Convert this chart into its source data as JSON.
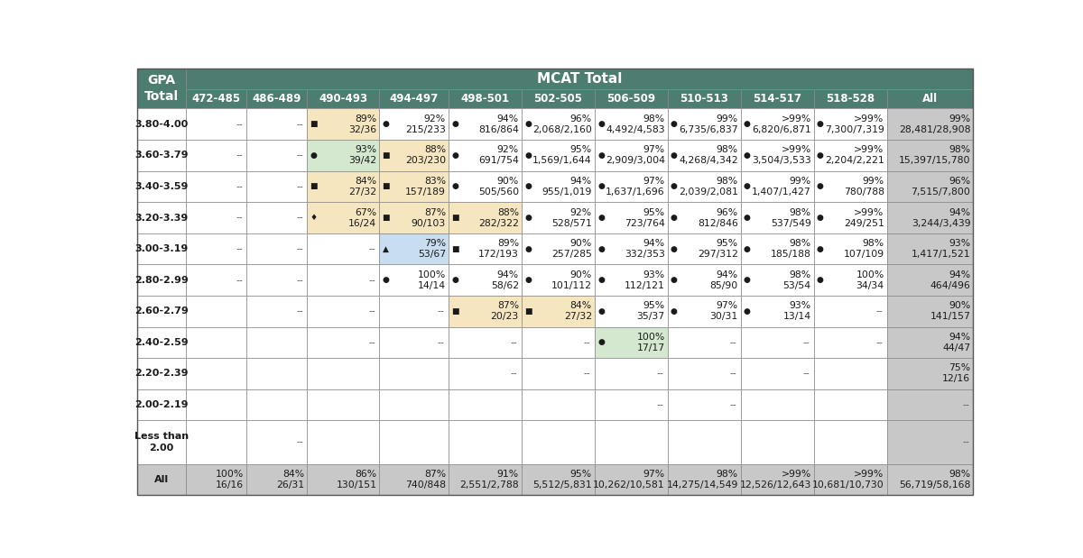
{
  "col_header2": "MCAT Total",
  "mcat_cols": [
    "472-485",
    "486-489",
    "490-493",
    "494-497",
    "498-501",
    "502-505",
    "506-509",
    "510-513",
    "514-517",
    "518-528",
    "All"
  ],
  "gpa_rows": [
    "3.80-4.00",
    "3.60-3.79",
    "3.40-3.59",
    "3.20-3.39",
    "3.00-3.19",
    "2.80-2.99",
    "2.60-2.79",
    "2.40-2.59",
    "2.20-2.39",
    "2.00-2.19",
    "Less than\n2.00",
    "All"
  ],
  "cells": [
    [
      "--",
      "--",
      "■ 89%\n32/36",
      "● 92%\n215/233",
      "● 94%\n816/864",
      "● 96%\n2,068/2,160",
      "● 98%\n4,492/4,583",
      "● 99%\n6,735/6,837",
      "● >99%\n6,820/6,871",
      "● >99%\n7,300/7,319",
      "99%\n28,481/28,908"
    ],
    [
      "--",
      "--",
      "● 93%\n39/42",
      "■ 88%\n203/230",
      "● 92%\n691/754",
      "● 95%\n1,569/1,644",
      "● 97%\n2,909/3,004",
      "● 98%\n4,268/4,342",
      "● >99%\n3,504/3,533",
      "● >99%\n2,204/2,221",
      "98%\n15,397/15,780"
    ],
    [
      "--",
      "--",
      "■ 84%\n27/32",
      "■ 83%\n157/189",
      "● 90%\n505/560",
      "● 94%\n955/1,019",
      "● 97%\n1,637/1,696",
      "● 98%\n2,039/2,081",
      "● 99%\n1,407/1,427",
      "● 99%\n780/788",
      "96%\n7,515/7,800"
    ],
    [
      "--",
      "--",
      "♦ 67%\n16/24",
      "■ 87%\n90/103",
      "■ 88%\n282/322",
      "● 92%\n528/571",
      "● 95%\n723/764",
      "● 96%\n812/846",
      "● 98%\n537/549",
      "● >99%\n249/251",
      "94%\n3,244/3,439"
    ],
    [
      "--",
      "--",
      "--",
      "▲ 79%\n53/67",
      "■ 89%\n172/193",
      "● 90%\n257/285",
      "● 94%\n332/353",
      "● 95%\n297/312",
      "● 98%\n185/188",
      "● 98%\n107/109",
      "93%\n1,417/1,521"
    ],
    [
      "--",
      "--",
      "--",
      "● 100%\n14/14",
      "● 94%\n58/62",
      "● 90%\n101/112",
      "● 93%\n112/121",
      "● 94%\n85/90",
      "● 98%\n53/54",
      "● 100%\n34/34",
      "94%\n464/496"
    ],
    [
      "",
      "--",
      "--",
      "--",
      "■ 87%\n20/23",
      "■ 84%\n27/32",
      "● 95%\n35/37",
      "● 97%\n30/31",
      "● 93%\n13/14",
      "--",
      "90%\n141/157"
    ],
    [
      "",
      "",
      "--",
      "--",
      "--",
      "--",
      "● 100%\n17/17",
      "--",
      "--",
      "--",
      "94%\n44/47"
    ],
    [
      "",
      "",
      "",
      "",
      "--",
      "--",
      "--",
      "--",
      "--",
      "",
      "75%\n12/16"
    ],
    [
      "",
      "",
      "",
      "",
      "",
      "",
      "--",
      "--",
      "",
      "",
      "--"
    ],
    [
      "",
      "--",
      "",
      "",
      "",
      "",
      "",
      "",
      "",
      "",
      "--"
    ],
    [
      "100%\n16/16",
      "84%\n26/31",
      "86%\n130/151",
      "87%\n740/848",
      "91%\n2,551/2,788",
      "95%\n5,512/5,831",
      "97%\n10,262/10,581",
      "98%\n14,275/14,549",
      ">99%\n12,526/12,643",
      ">99%\n10,681/10,730",
      "98%\n56,719/58,168"
    ]
  ],
  "header_bg": "#4d7c70",
  "header_text": "#ffffff",
  "light_green": "#d4e8d0",
  "light_yellow": "#f5e6c0",
  "light_blue": "#c8ddf0",
  "gray_bg": "#c8c8c8",
  "white": "#ffffff",
  "border_color": "#888888",
  "cell_bg_overrides": {
    "0,2": "light_yellow",
    "1,2": "light_green",
    "2,2": "light_yellow",
    "3,2": "light_yellow",
    "1,3": "light_yellow",
    "2,3": "light_yellow",
    "3,3": "light_yellow",
    "4,3": "light_blue",
    "3,4": "light_yellow",
    "6,4": "light_yellow",
    "6,5": "light_yellow",
    "7,6": "light_green"
  }
}
